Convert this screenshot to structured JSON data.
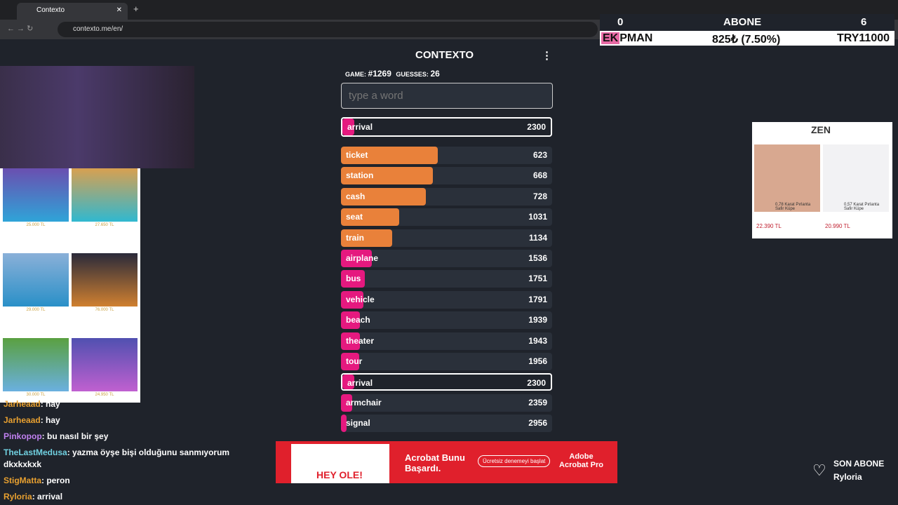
{
  "browser": {
    "tab_title": "Contexto",
    "url": "contexto.me/en/"
  },
  "game": {
    "title": "CONTEXTO",
    "game_label": "GAME:",
    "game_number": "#1269",
    "guesses_label": "GUESSES:",
    "guesses": 26,
    "placeholder": "type a word",
    "last_guess": {
      "word": "arrival",
      "rank": 2300
    },
    "guesses_list": [
      {
        "word": "ticket",
        "rank": 623
      },
      {
        "word": "station",
        "rank": 668
      },
      {
        "word": "cash",
        "rank": 728
      },
      {
        "word": "seat",
        "rank": 1031
      },
      {
        "word": "train",
        "rank": 1134
      },
      {
        "word": "airplane",
        "rank": 1536
      },
      {
        "word": "bus",
        "rank": 1751
      },
      {
        "word": "vehicle",
        "rank": 1791
      },
      {
        "word": "beach",
        "rank": 1939
      },
      {
        "word": "theater",
        "rank": 1943
      },
      {
        "word": "tour",
        "rank": 1956
      },
      {
        "word": "arrival",
        "rank": 2300
      },
      {
        "word": "armchair",
        "rank": 2359
      },
      {
        "word": "signal",
        "rank": 2956
      }
    ]
  },
  "overlay": {
    "left_count": 0,
    "label": "ABONE",
    "right_count": 6,
    "ticker_highlight": "EK",
    "ticker_name": "PMAN",
    "ticker_value": "825₺ (7.50%)",
    "ticker_goal": "TRY11000",
    "last_sub_label": "SON ABONE",
    "last_sub_name": "Ryloria"
  },
  "chat": [
    {
      "user": "Jarheaad",
      "text": "hay"
    },
    {
      "user": "Jarheaad",
      "text": "hay"
    },
    {
      "user": "Pinkopop",
      "text": "bu nasıl bir şey"
    },
    {
      "user": "TheLastMedusa",
      "text": "yazma öyşe bişi olduğunu sanmıyorum dkxkxkxk"
    },
    {
      "user": "StigMatta",
      "text": "peron"
    },
    {
      "user": "Ryloria",
      "text": "arrival"
    }
  ],
  "left_ad": {
    "prices": [
      "25.000 TL",
      "27.650 TL",
      "29.000 TL",
      "76.000 TL",
      "30.000 TL",
      "24.950 TL"
    ]
  },
  "right_ad": {
    "brand": "ZEN",
    "items": [
      {
        "name": "0,78 Karat Pırlanta Safir Küpe",
        "price": "22.390 TL"
      },
      {
        "name": "0,57 Karat Pırlanta Safir Küpe",
        "price": "20.990 TL"
      }
    ]
  },
  "bottom_ad": {
    "headline": "Acrobat Bunu Başardı.",
    "button": "Ücretsiz denemeyi başlat",
    "brand": "Adobe Acrobat Pro",
    "tagline": "HEY OLE!"
  }
}
